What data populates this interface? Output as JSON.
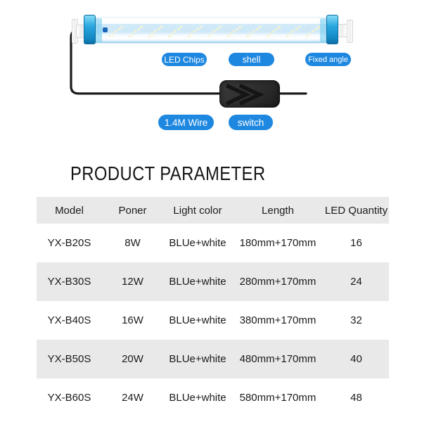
{
  "product_diagram": {
    "callouts": [
      {
        "id": "led_chips",
        "label": "LED Chips"
      },
      {
        "id": "shell",
        "label": "shell"
      },
      {
        "id": "fixed_angle",
        "label": "Fixed angle"
      },
      {
        "id": "wire",
        "label": "1.4M Wire"
      },
      {
        "id": "switch",
        "label": "switch"
      }
    ]
  },
  "section": {
    "heading": "PRODUCT PARAMETER"
  },
  "table": {
    "columns": [
      "Model",
      "Poner",
      "Light color",
      "Length",
      "LED Quantity"
    ],
    "rows": [
      [
        "YX-B20S",
        "8W",
        "BLUe+white",
        "180mm+170mm",
        "16"
      ],
      [
        "YX-B30S",
        "12W",
        "BLUe+white",
        "280mm+170mm",
        "24"
      ],
      [
        "YX-B40S",
        "16W",
        "BLUe+white",
        "380mm+170mm",
        "32"
      ],
      [
        "YX-B50S",
        "20W",
        "BLUe+white",
        "480mm+170mm",
        "40"
      ],
      [
        "YX-B60S",
        "24W",
        "BLUe+white",
        "580mm+170mm",
        "48"
      ]
    ]
  },
  "colors": {
    "callout_pill": "#1e88e0",
    "callout_text": "#ffffff",
    "table_stripe": "#e9e9e9",
    "text_dark": "#1b1b1b",
    "bar_glass_blue": "#cde8f8",
    "bar_cap_blue": "#2aa7e0",
    "led_dot": "#f6f1cb",
    "switch_body": "#2e2e2e",
    "wire": "#1c1c1c"
  }
}
